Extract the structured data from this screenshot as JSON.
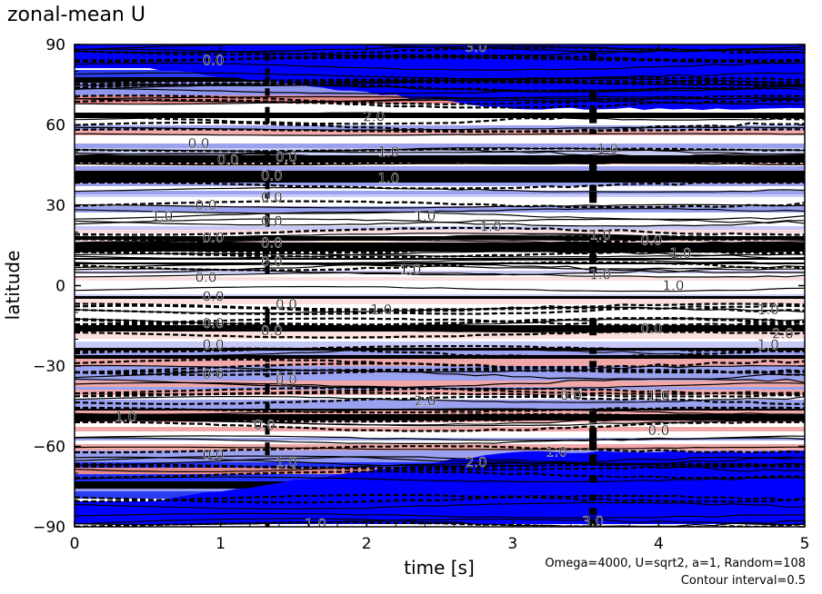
{
  "chart_data": {
    "type": "heatmap",
    "title": "zonal-mean U",
    "xlabel": "time [s]",
    "ylabel": "latitude",
    "xlim": [
      0,
      5
    ],
    "ylim": [
      -90,
      90
    ],
    "x_ticks": [
      0,
      1,
      2,
      3,
      4,
      5
    ],
    "x_tick_labels": [
      "0",
      "1",
      "2",
      "3",
      "4",
      "5"
    ],
    "y_ticks": [
      -90,
      -60,
      -30,
      0,
      30,
      60,
      90
    ],
    "y_tick_labels": [
      "−90",
      "−60",
      "−30",
      "0",
      "30",
      "60",
      "90"
    ],
    "annotations": [
      "Omega=4000, U=sqrt2, a=1, Random=108",
      "Contour interval=0.5"
    ],
    "contour_interval": 0.5,
    "colors": {
      "negative": "#0000ff",
      "positive": "#e88080",
      "neutral": "#ffffff",
      "contour": "#000000"
    },
    "contour_labels": [
      {
        "x": 0.95,
        "lat": 84,
        "text": "0.0"
      },
      {
        "x": 2.75,
        "lat": 89,
        "text": "3.0"
      },
      {
        "x": 2.05,
        "lat": 63,
        "text": "2.0"
      },
      {
        "x": 0.85,
        "lat": 53,
        "text": "0.0"
      },
      {
        "x": 1.45,
        "lat": 48,
        "text": "0.0"
      },
      {
        "x": 2.15,
        "lat": 50,
        "text": "1.0"
      },
      {
        "x": 3.65,
        "lat": 51,
        "text": "1.0"
      },
      {
        "x": 1.05,
        "lat": 47,
        "text": "0.0"
      },
      {
        "x": 1.35,
        "lat": 41,
        "text": "0.0"
      },
      {
        "x": 2.15,
        "lat": 40,
        "text": "1.0"
      },
      {
        "x": 1.35,
        "lat": 33,
        "text": "0.0"
      },
      {
        "x": 0.9,
        "lat": 30,
        "text": "0.0"
      },
      {
        "x": 0.6,
        "lat": 26,
        "text": "1.0"
      },
      {
        "x": 1.35,
        "lat": 24,
        "text": "0.0"
      },
      {
        "x": 2.4,
        "lat": 26,
        "text": "1.0"
      },
      {
        "x": 2.85,
        "lat": 22,
        "text": "1.0"
      },
      {
        "x": 0.95,
        "lat": 18,
        "text": "0.0"
      },
      {
        "x": 1.35,
        "lat": 16,
        "text": "0.0"
      },
      {
        "x": 3.6,
        "lat": 19,
        "text": "1.0"
      },
      {
        "x": 3.95,
        "lat": 17,
        "text": "0.0"
      },
      {
        "x": 4.15,
        "lat": 12,
        "text": "1.0"
      },
      {
        "x": 1.35,
        "lat": 9,
        "text": "0.0"
      },
      {
        "x": 2.3,
        "lat": 6,
        "text": "1.0"
      },
      {
        "x": 0.9,
        "lat": 3,
        "text": "0.0"
      },
      {
        "x": 3.6,
        "lat": 4,
        "text": "1.0"
      },
      {
        "x": 4.1,
        "lat": 0,
        "text": "1.0"
      },
      {
        "x": 0.95,
        "lat": -4,
        "text": "0.0"
      },
      {
        "x": 1.45,
        "lat": -7,
        "text": "0.0"
      },
      {
        "x": 2.1,
        "lat": -9,
        "text": "1.0"
      },
      {
        "x": 4.75,
        "lat": -9,
        "text": "1.0"
      },
      {
        "x": 0.95,
        "lat": -14,
        "text": "0.0"
      },
      {
        "x": 1.35,
        "lat": -17,
        "text": "0.0"
      },
      {
        "x": 3.95,
        "lat": -16,
        "text": "0.0"
      },
      {
        "x": 4.85,
        "lat": -18,
        "text": "2.0"
      },
      {
        "x": 0.95,
        "lat": -22,
        "text": "0.0"
      },
      {
        "x": 4.75,
        "lat": -22,
        "text": "1.0"
      },
      {
        "x": 0.95,
        "lat": -33,
        "text": "0.0"
      },
      {
        "x": 1.45,
        "lat": -35,
        "text": "0.0"
      },
      {
        "x": 3.4,
        "lat": -41,
        "text": "0.0"
      },
      {
        "x": 4.0,
        "lat": -41,
        "text": "1.0"
      },
      {
        "x": 2.4,
        "lat": -43,
        "text": "2.0"
      },
      {
        "x": 0.35,
        "lat": -49,
        "text": "1.0"
      },
      {
        "x": 1.3,
        "lat": -52,
        "text": "0.0"
      },
      {
        "x": 4.0,
        "lat": -54,
        "text": "0.0"
      },
      {
        "x": 0.95,
        "lat": -63,
        "text": "0.0"
      },
      {
        "x": 1.45,
        "lat": -66,
        "text": "1.0"
      },
      {
        "x": 2.75,
        "lat": -66,
        "text": "2.0"
      },
      {
        "x": 3.3,
        "lat": -62,
        "text": "1.0"
      },
      {
        "x": 1.65,
        "lat": -89,
        "text": "1.0"
      },
      {
        "x": 3.55,
        "lat": -88,
        "text": "3.0"
      }
    ]
  }
}
